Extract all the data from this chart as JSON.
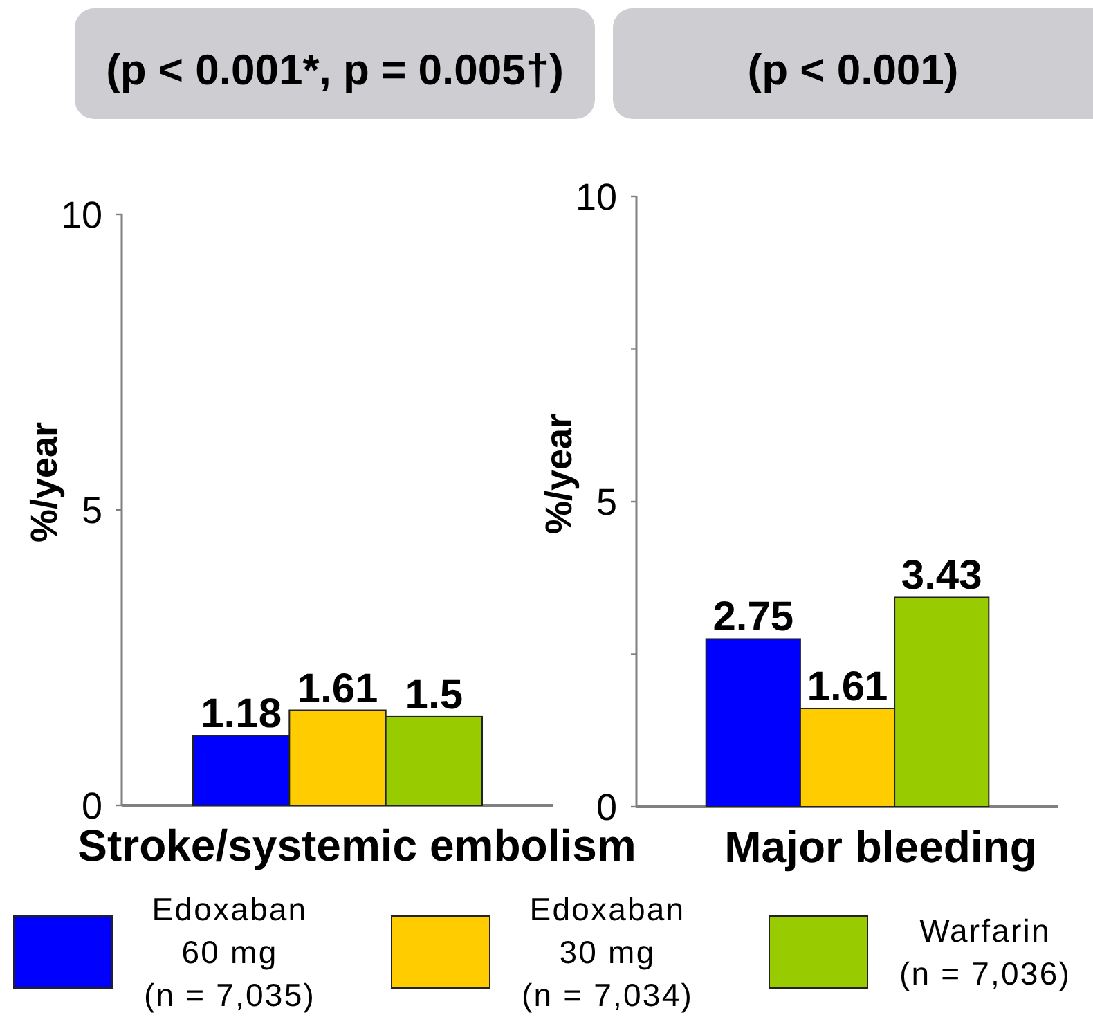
{
  "chart_data": [
    {
      "type": "bar",
      "title": "(p < 0.001*, p = 0.005†)",
      "ylabel": "%/year",
      "categories": [
        "Stroke/systemic embolism"
      ],
      "series": [
        {
          "name": "Edoxaban 60 mg (n = 7,035)",
          "color": "#0000ff",
          "values": [
            1.18
          ]
        },
        {
          "name": "Edoxaban 30 mg (n = 7,034)",
          "color": "#ffcc00",
          "values": [
            1.61
          ]
        },
        {
          "name": "Warfarin (n = 7,036)",
          "color": "#99cc00",
          "values": [
            1.5
          ]
        }
      ],
      "ylim": [
        0,
        10
      ],
      "yticks": [
        0,
        5,
        10
      ],
      "data_labels": true,
      "legend": "bottom"
    },
    {
      "type": "bar",
      "title": "(p < 0.001)",
      "ylabel": "%/year",
      "categories": [
        "Major bleeding"
      ],
      "series": [
        {
          "color": "#0000ff",
          "values": [
            2.75
          ]
        },
        {
          "color": "#ffcc00",
          "values": [
            1.61
          ]
        },
        {
          "color": "#99cc00",
          "values": [
            3.43
          ]
        }
      ],
      "ylim": [
        0,
        10
      ],
      "yticks": [
        0,
        {
          "value": 2.5,
          "label": null
        },
        5,
        {
          "value": 7.5,
          "label": null
        },
        10
      ],
      "data_labels": true
    }
  ]
}
